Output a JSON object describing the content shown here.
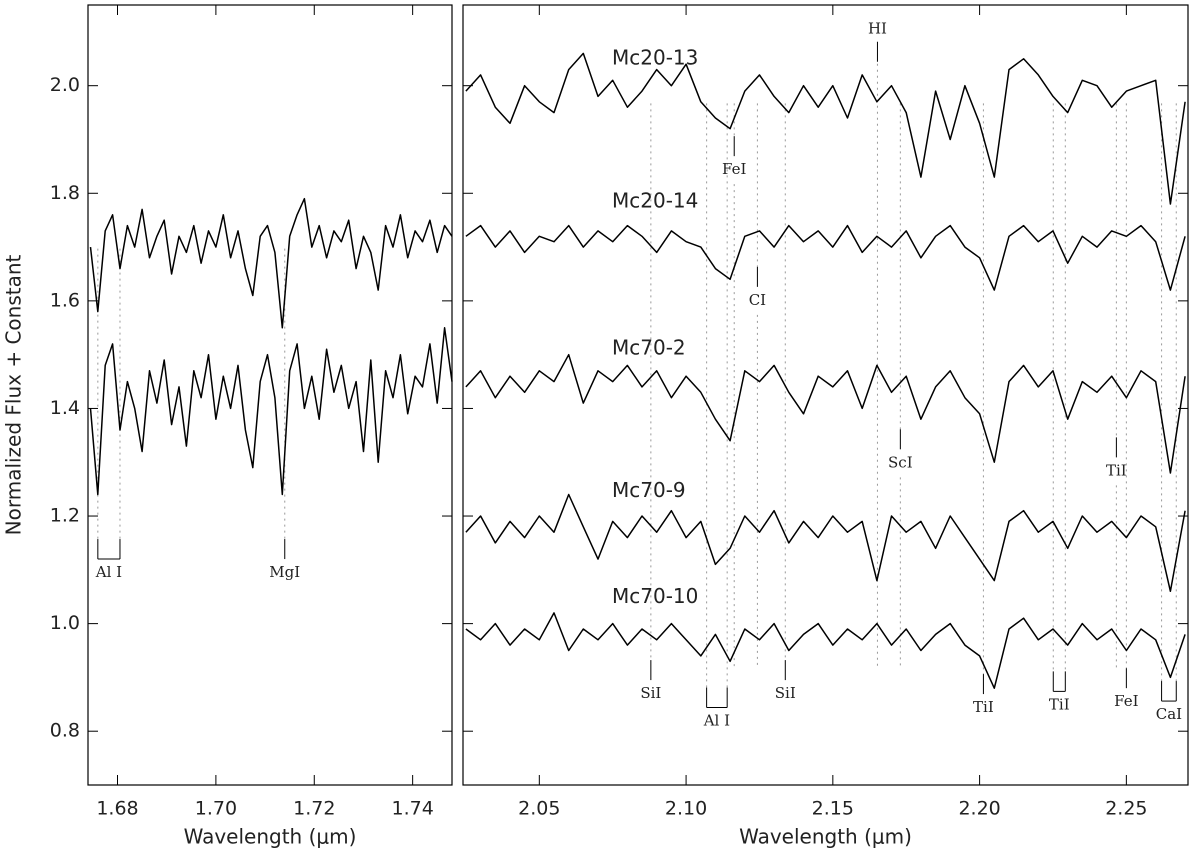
{
  "chart_data": [
    {
      "type": "line",
      "ylabel": "Normalized Flux + Constant",
      "xlabel": "Wavelength (μm)",
      "xlim": [
        1.674,
        1.748
      ],
      "ylim": [
        0.7,
        2.15
      ],
      "xticks": [
        1.68,
        {
          "value": 1.7,
          "label": "1.70"
        },
        1.72,
        1.74
      ],
      "yticks": [
        0.8,
        {
          "value": 1,
          "label": "1.0"
        },
        1.2,
        1.4,
        1.6,
        1.8,
        {
          "value": 2,
          "label": "2.0"
        }
      ],
      "show_ytick_labels": true,
      "x": [
        1.6745,
        1.676,
        1.6775,
        1.679,
        1.6805,
        1.682,
        1.6835,
        1.685,
        1.6865,
        1.688,
        1.6895,
        1.691,
        1.6925,
        1.694,
        1.6955,
        1.697,
        1.6985,
        1.7,
        1.7015,
        1.703,
        1.7045,
        1.706,
        1.7075,
        1.709,
        1.7105,
        1.712,
        1.7135,
        1.715,
        1.7165,
        1.718,
        1.7195,
        1.721,
        1.7225,
        1.724,
        1.7255,
        1.727,
        1.7285,
        1.73,
        1.7315,
        1.733,
        1.7345,
        1.736,
        1.7375,
        1.739,
        1.7405,
        1.742,
        1.7435,
        1.745,
        1.7465,
        1.748
      ],
      "series": [
        {
          "color": "#000000",
          "values": [
            1.7,
            1.58,
            1.73,
            1.76,
            1.66,
            1.74,
            1.7,
            1.77,
            1.68,
            1.72,
            1.75,
            1.65,
            1.72,
            1.69,
            1.74,
            1.67,
            1.73,
            1.7,
            1.76,
            1.68,
            1.73,
            1.66,
            1.61,
            1.72,
            1.74,
            1.69,
            1.55,
            1.72,
            1.76,
            1.79,
            1.7,
            1.74,
            1.68,
            1.73,
            1.71,
            1.75,
            1.66,
            1.72,
            1.69,
            1.62,
            1.74,
            1.7,
            1.76,
            1.68,
            1.73,
            1.71,
            1.75,
            1.69,
            1.74,
            1.72
          ]
        },
        {
          "color": "#000000",
          "values": [
            1.4,
            1.24,
            1.48,
            1.52,
            1.36,
            1.45,
            1.4,
            1.32,
            1.47,
            1.41,
            1.49,
            1.37,
            1.44,
            1.33,
            1.47,
            1.42,
            1.5,
            1.38,
            1.46,
            1.4,
            1.48,
            1.36,
            1.29,
            1.45,
            1.5,
            1.42,
            1.24,
            1.47,
            1.52,
            1.4,
            1.46,
            1.38,
            1.51,
            1.43,
            1.48,
            1.4,
            1.45,
            1.32,
            1.49,
            1.3,
            1.47,
            1.42,
            1.5,
            1.39,
            1.46,
            1.44,
            1.52,
            1.41,
            1.55,
            1.45
          ]
        }
      ],
      "line_ids": [
        {
          "label": "Al  I",
          "x": [
            1.676,
            1.6805
          ],
          "y": 1.094
        },
        {
          "label": "MgI",
          "x": [
            1.714
          ],
          "y": 1.094
        }
      ]
    },
    {
      "type": "line",
      "xlabel": "Wavelength (μm)",
      "xlim": [
        2.024,
        2.271
      ],
      "ylim": [
        0.7,
        2.15
      ],
      "xticks": [
        2.05,
        {
          "value": 2.1,
          "label": "2.10"
        },
        2.15,
        {
          "value": 2.2,
          "label": "2.20"
        },
        2.25
      ],
      "yticks": [
        0.8,
        1,
        1.2,
        1.4,
        1.6,
        1.8,
        2
      ],
      "show_ytick_labels": false,
      "x": [
        2.025,
        2.03,
        2.035,
        2.04,
        2.045,
        2.05,
        2.055,
        2.06,
        2.065,
        2.07,
        2.075,
        2.08,
        2.085,
        2.09,
        2.095,
        2.1,
        2.105,
        2.11,
        2.115,
        2.12,
        2.125,
        2.13,
        2.135,
        2.14,
        2.145,
        2.15,
        2.155,
        2.16,
        2.165,
        2.17,
        2.175,
        2.18,
        2.185,
        2.19,
        2.195,
        2.2,
        2.205,
        2.21,
        2.215,
        2.22,
        2.225,
        2.23,
        2.235,
        2.24,
        2.245,
        2.25,
        2.255,
        2.26,
        2.265,
        2.27
      ],
      "series": [
        {
          "name": "Mc20-13",
          "color": "#000000",
          "values": [
            1.99,
            2.02,
            1.96,
            1.93,
            2.0,
            1.97,
            1.95,
            2.03,
            2.06,
            1.98,
            2.01,
            1.96,
            1.99,
            2.03,
            2.0,
            2.04,
            1.97,
            1.94,
            1.92,
            1.99,
            2.02,
            1.98,
            1.95,
            2.0,
            1.96,
            2.0,
            1.94,
            2.02,
            1.97,
            2.0,
            1.95,
            1.83,
            1.99,
            1.9,
            2.0,
            1.93,
            1.83,
            2.03,
            2.05,
            2.02,
            1.98,
            1.95,
            2.01,
            2.0,
            1.96,
            1.99,
            2.0,
            2.01,
            1.78,
            1.97
          ]
        },
        {
          "name": "Mc20-14",
          "color": "#000000",
          "values": [
            1.72,
            1.74,
            1.7,
            1.73,
            1.69,
            1.72,
            1.71,
            1.74,
            1.7,
            1.73,
            1.71,
            1.74,
            1.72,
            1.69,
            1.73,
            1.71,
            1.7,
            1.66,
            1.64,
            1.72,
            1.73,
            1.7,
            1.74,
            1.71,
            1.73,
            1.7,
            1.74,
            1.69,
            1.72,
            1.7,
            1.73,
            1.68,
            1.72,
            1.74,
            1.7,
            1.68,
            1.62,
            1.72,
            1.74,
            1.71,
            1.73,
            1.67,
            1.72,
            1.7,
            1.73,
            1.72,
            1.74,
            1.71,
            1.62,
            1.72
          ]
        },
        {
          "name": "Mc70-2",
          "color": "#000000",
          "values": [
            1.44,
            1.47,
            1.42,
            1.46,
            1.43,
            1.47,
            1.45,
            1.5,
            1.41,
            1.47,
            1.45,
            1.48,
            1.44,
            1.47,
            1.42,
            1.46,
            1.43,
            1.38,
            1.34,
            1.47,
            1.45,
            1.48,
            1.43,
            1.39,
            1.46,
            1.44,
            1.47,
            1.4,
            1.48,
            1.43,
            1.46,
            1.38,
            1.44,
            1.47,
            1.42,
            1.39,
            1.3,
            1.45,
            1.48,
            1.44,
            1.47,
            1.38,
            1.45,
            1.43,
            1.46,
            1.42,
            1.47,
            1.45,
            1.28,
            1.46
          ]
        },
        {
          "name": "Mc70-9",
          "color": "#000000",
          "values": [
            1.17,
            1.2,
            1.15,
            1.19,
            1.16,
            1.2,
            1.17,
            1.24,
            1.18,
            1.12,
            1.19,
            1.16,
            1.2,
            1.17,
            1.21,
            1.16,
            1.19,
            1.11,
            1.14,
            1.2,
            1.17,
            1.21,
            1.15,
            1.19,
            1.16,
            1.2,
            1.17,
            1.19,
            1.08,
            1.2,
            1.17,
            1.19,
            1.14,
            1.2,
            1.16,
            1.12,
            1.08,
            1.19,
            1.21,
            1.17,
            1.19,
            1.14,
            1.2,
            1.17,
            1.19,
            1.16,
            1.2,
            1.18,
            1.06,
            1.21
          ]
        },
        {
          "name": "Mc70-10",
          "color": "#000000",
          "values": [
            0.99,
            0.97,
            1.0,
            0.96,
            0.99,
            0.97,
            1.02,
            0.95,
            0.99,
            0.97,
            1.0,
            0.96,
            0.99,
            0.97,
            1.0,
            0.97,
            0.94,
            0.98,
            0.93,
            0.99,
            0.97,
            1.0,
            0.95,
            0.98,
            1.0,
            0.96,
            0.99,
            0.97,
            1.0,
            0.96,
            0.99,
            0.95,
            0.98,
            1.0,
            0.96,
            0.94,
            0.88,
            0.99,
            1.01,
            0.97,
            0.99,
            0.96,
            1.0,
            0.97,
            0.99,
            0.95,
            0.99,
            0.97,
            0.9,
            0.98
          ]
        }
      ],
      "line_ids": [
        {
          "label": "SiI",
          "x": [
            2.088
          ],
          "y": 0.869
        },
        {
          "label": "Al  I",
          "x": [
            2.107,
            2.114
          ],
          "y": 0.818
        },
        {
          "label": "FeI",
          "x": [
            2.1164
          ],
          "y": 1.843
        },
        {
          "label": "CI",
          "x": [
            2.1243
          ],
          "y": 1.6
        },
        {
          "label": "SiI",
          "x": [
            2.1338
          ],
          "y": 0.869
        },
        {
          "label": "HI",
          "x": [
            2.1652
          ],
          "y": 2.104
        },
        {
          "label": "ScI",
          "x": [
            2.173
          ],
          "y": 1.298
        },
        {
          "label": "TiI",
          "x": [
            2.2013
          ],
          "y": 0.843
        },
        {
          "label": "TiI",
          "x": [
            2.2251,
            2.2292
          ],
          "y": 0.848
        },
        {
          "label": "TiI",
          "x": [
            2.2466
          ],
          "y": 1.283
        },
        {
          "label": "FeI",
          "x": [
            2.25
          ],
          "y": 0.854
        },
        {
          "label": "CaI",
          "x": [
            2.262,
            2.267
          ],
          "y": 0.83
        }
      ]
    }
  ]
}
